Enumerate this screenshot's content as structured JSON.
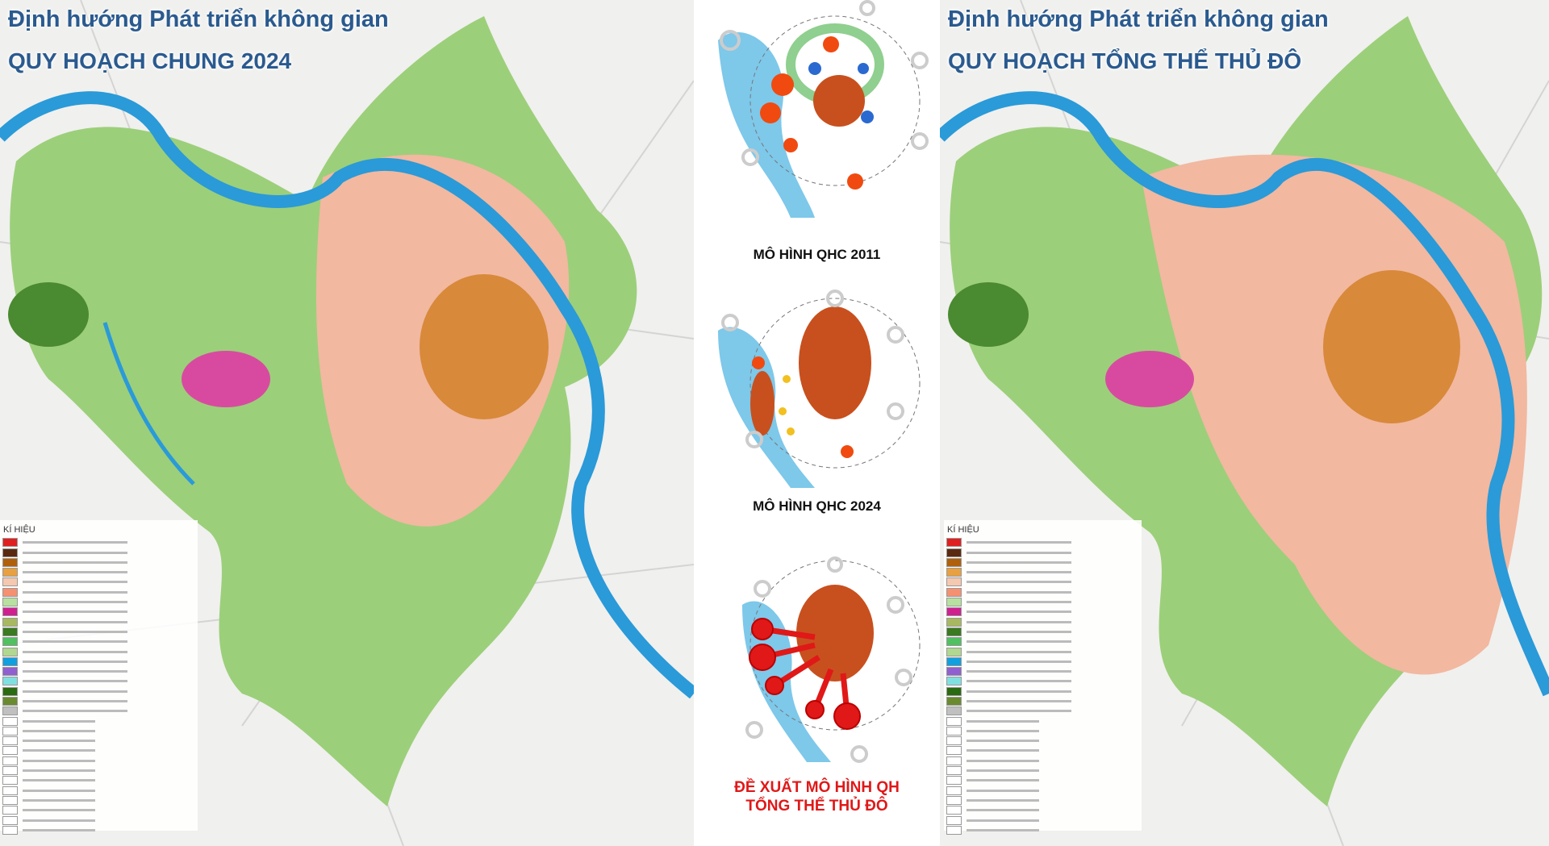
{
  "left_map": {
    "title_line1": "Định hướng Phát triển không gian",
    "title_line2": "QUY HOẠCH CHUNG 2024",
    "legend_heading": "KÍ HIỆU"
  },
  "right_map": {
    "title_line1": "Định hướng Phát triển không gian",
    "title_line2": "QUY HOẠCH TỔNG THỂ THỦ ĐÔ",
    "legend_heading": "KÍ HIỆU"
  },
  "center": {
    "model_2011_label": "MÔ HÌNH QHC 2011",
    "model_2024_label": "MÔ HÌNH QHC 2024",
    "proposal_label_line1": "ĐỀ XUẤT MÔ HÌNH QH",
    "proposal_label_line2": "TỔNG THỂ THỦ ĐÔ"
  },
  "legend_colors": [
    "#e02020",
    "#5a2a10",
    "#b0600a",
    "#e8a040",
    "#f5c8b0",
    "#f59070",
    "#b8e0a0",
    "#d02090",
    "#a8b860",
    "#3a7a20",
    "#50c060",
    "#b0d890",
    "#10a0e0",
    "#9060d0",
    "#80e0e0",
    "#2a6a10",
    "#6a8a30",
    "#c0c0c0"
  ],
  "colors": {
    "title": "#2a5a8f",
    "proposal_label": "#e01818",
    "river": "#2a9ad8",
    "urban": "#f2b8a0",
    "core": "#d8893a",
    "green": "#9ccf7a",
    "node_red": "#f04a10"
  }
}
